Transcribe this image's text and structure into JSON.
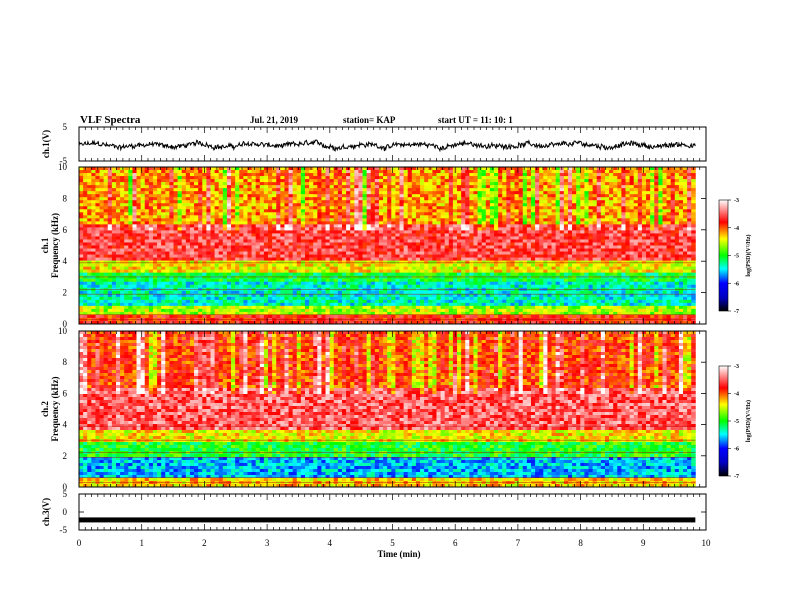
{
  "header": {
    "title": "VLF Spectra",
    "date": "Jul. 21, 2019",
    "station": "station= KAP",
    "start": "start  UT =   11: 10: 1"
  },
  "chart_data": [
    {
      "type": "line",
      "name": "ch1-waveform",
      "ylabel": "ch.1(V)",
      "ylim": [
        -5,
        5
      ],
      "yticks": [
        "5",
        "-5"
      ],
      "xlim": [
        0,
        10
      ],
      "x_data_end": 9.83,
      "baseline": -0.4,
      "amplitude": 1.3
    },
    {
      "type": "heatmap",
      "name": "ch1-spectrogram",
      "ylabel": "ch.1\nFrequency (kHz)",
      "ylabel_line1": "ch.1",
      "ylabel_line2": "Frequency (kHz)",
      "ylim": [
        0,
        10
      ],
      "yticks": [
        "0",
        "2",
        "4",
        "6",
        "8",
        "10"
      ],
      "xlim": [
        0,
        10
      ],
      "x_data_end": 9.83,
      "bands": [
        {
          "from_khz": 0,
          "to_khz": 0.6,
          "level": -3.8
        },
        {
          "from_khz": 0.6,
          "to_khz": 1.2,
          "level": -4.6
        },
        {
          "from_khz": 1.2,
          "to_khz": 2.6,
          "level": -5.4
        },
        {
          "from_khz": 2.6,
          "to_khz": 3.3,
          "level": -5.1
        },
        {
          "from_khz": 3.3,
          "to_khz": 4.0,
          "level": -4.4
        },
        {
          "from_khz": 4.0,
          "to_khz": 6.3,
          "level": -3.6
        },
        {
          "from_khz": 6.3,
          "to_khz": 10,
          "level": -4.2
        }
      ],
      "colorbar": {
        "label": "log(PSD)(V²/Hz)",
        "range": [
          -7,
          -3
        ],
        "ticks": [
          "-3",
          "-4",
          "-5",
          "-6",
          "-7"
        ]
      }
    },
    {
      "type": "heatmap",
      "name": "ch2-spectrogram",
      "ylabel": "ch.2\nFrequency (kHz)",
      "ylabel_line1": "ch.2",
      "ylabel_line2": "Frequency (kHz)",
      "ylim": [
        0,
        10
      ],
      "yticks": [
        "0",
        "2",
        "4",
        "6",
        "8",
        "10"
      ],
      "xlim": [
        0,
        10
      ],
      "x_data_end": 9.83,
      "bands": [
        {
          "from_khz": 0,
          "to_khz": 0.5,
          "level": -4.3
        },
        {
          "from_khz": 0.5,
          "to_khz": 2.0,
          "level": -5.6
        },
        {
          "from_khz": 2.0,
          "to_khz": 2.9,
          "level": -5.0
        },
        {
          "from_khz": 2.9,
          "to_khz": 3.6,
          "level": -4.4
        },
        {
          "from_khz": 3.6,
          "to_khz": 6.3,
          "level": -3.5
        },
        {
          "from_khz": 6.3,
          "to_khz": 10,
          "level": -3.9
        }
      ],
      "colorbar": {
        "label": "log(PSD)(V²/Hz)",
        "range": [
          -7,
          -3
        ],
        "ticks": [
          "-3",
          "-4",
          "-5",
          "-6",
          "-7"
        ]
      }
    },
    {
      "type": "line",
      "name": "ch3-waveform",
      "ylabel": "ch.3(V)",
      "ylim": [
        -5,
        5
      ],
      "yticks": [
        "5",
        "0",
        "-5"
      ],
      "xlim": [
        0,
        10
      ],
      "x_data_end": 9.83,
      "baseline": -2.2,
      "amplitude": 0.1
    }
  ],
  "xaxis": {
    "label": "Time (min)",
    "ticks": [
      "0",
      "1",
      "2",
      "3",
      "4",
      "5",
      "6",
      "7",
      "8",
      "9",
      "10"
    ]
  },
  "colors": {
    "colormap": [
      "#000080",
      "#0000ff",
      "#00ffff",
      "#00ff00",
      "#ffff00",
      "#ff0000",
      "#ffffff"
    ]
  }
}
